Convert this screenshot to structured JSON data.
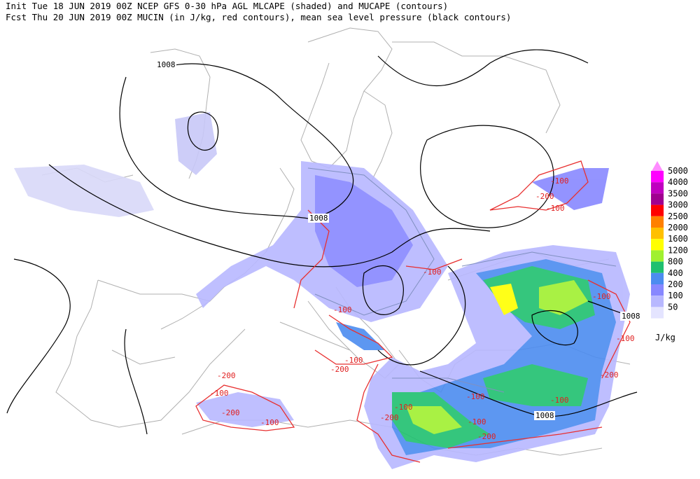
{
  "header": {
    "line1": "Init  Tue 18 JUN 2019 00Z  NCEP GFS 0-30 hPa AGL MLCAPE (shaded) and MUCAPE (contours)",
    "line2": "Fcst Thu 20 JUN 2019 00Z  MUCIN (in J/kg, red contours), mean sea level pressure (black contours)"
  },
  "legend": {
    "unit": "J/kg",
    "levels": [
      {
        "value": 5000,
        "color": "#ff00ff"
      },
      {
        "value": 4000,
        "color": "#c000c0"
      },
      {
        "value": 3500,
        "color": "#a00090"
      },
      {
        "value": 3000,
        "color": "#ff0000"
      },
      {
        "value": 2500,
        "color": "#ff8000"
      },
      {
        "value": 2000,
        "color": "#ffc000"
      },
      {
        "value": 1600,
        "color": "#ffff00"
      },
      {
        "value": 1200,
        "color": "#a0f030"
      },
      {
        "value": 800,
        "color": "#20c070"
      },
      {
        "value": 400,
        "color": "#4c8cf0"
      },
      {
        "value": 200,
        "color": "#8888ff"
      },
      {
        "value": 100,
        "color": "#b8b8ff"
      },
      {
        "value": 50,
        "color": "#e4e4ff"
      }
    ]
  },
  "pressure_labels": [
    "1008",
    "1008",
    "1008",
    "1008"
  ],
  "cin_labels": [
    "-100",
    "-200",
    "-100",
    "-100",
    "-100",
    "-100",
    "-100",
    "-100",
    "-200",
    "-200",
    "-100",
    "-200",
    "-100",
    "-200",
    "-100",
    "-100",
    "-100",
    "-200",
    "-100",
    "-200"
  ]
}
